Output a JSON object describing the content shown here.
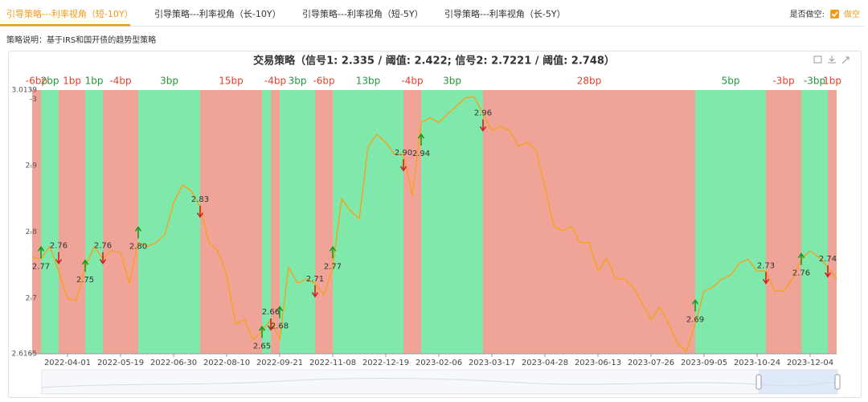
{
  "tabs": [
    "引导策略---利率视角（短-10Y）",
    "引导策略---利率视角（长-10Y）",
    "引导策略---利率视角（短-5Y）",
    "引导策略---利率视角（长-5Y）"
  ],
  "short_toggle": {
    "label": "是否做空:",
    "option": "做空"
  },
  "description": "策略说明：基于IRS和国开债的趋势型策略",
  "chart_data": {
    "type": "line",
    "title": "交易策略（信号1: 2.335 / 阈值: 2.422; 信号2: 2.7221 / 阈值: 2.748）",
    "color": "#f7a21b",
    "categories": [
      null,
      null,
      null,
      null,
      "2022-04-01",
      null,
      null,
      null,
      null,
      null,
      "2022-05-19",
      null,
      null,
      null,
      null,
      null,
      "2022-06-30",
      null,
      null,
      null,
      null,
      null,
      "2022-08-10",
      null,
      null,
      null,
      null,
      null,
      "2022-09-21",
      null,
      null,
      null,
      null,
      null,
      "2022-11-08",
      null,
      null,
      null,
      null,
      null,
      "2022-12-19",
      null,
      null,
      null,
      null,
      null,
      "2023-02-06",
      null,
      null,
      null,
      null,
      null,
      "2023-03-17",
      null,
      null,
      null,
      null,
      null,
      "2023-04-28",
      null,
      null,
      null,
      null,
      null,
      "2023-06-13",
      null,
      null,
      null,
      null,
      null,
      "2023-07-26",
      null,
      null,
      null,
      null,
      null,
      "2023-09-05",
      null,
      null,
      null,
      null,
      null,
      "2023-10-24",
      null,
      null,
      null,
      null,
      null,
      "2023-12-04",
      null,
      null,
      null
    ],
    "values": [
      2.762,
      2.76,
      2.778,
      2.741,
      2.7,
      2.697,
      2.747,
      2.778,
      2.76,
      2.772,
      2.769,
      2.723,
      2.784,
      2.778,
      2.784,
      2.796,
      2.844,
      2.871,
      2.862,
      2.838,
      2.784,
      2.772,
      2.735,
      2.662,
      2.668,
      2.638,
      2.65,
      2.668,
      2.638,
      2.747,
      2.723,
      2.729,
      2.723,
      2.705,
      2.747,
      2.85,
      2.832,
      2.82,
      2.929,
      2.947,
      2.935,
      2.917,
      2.917,
      2.856,
      2.965,
      2.972,
      2.965,
      2.978,
      2.99,
      3.002,
      3.004,
      2.978,
      2.953,
      2.959,
      2.953,
      2.929,
      2.935,
      2.923,
      2.868,
      2.808,
      2.802,
      2.808,
      2.784,
      2.784,
      2.741,
      2.76,
      2.729,
      2.729,
      2.717,
      2.693,
      2.668,
      2.687,
      2.662,
      2.632,
      2.62,
      2.662,
      2.711,
      2.717,
      2.729,
      2.735,
      2.753,
      2.759,
      2.741,
      2.741,
      2.711,
      2.711,
      2.729,
      2.759,
      2.772,
      2.762,
      2.747,
      2.729
    ],
    "ylim": [
      2.6165,
      3.0139
    ],
    "yticks": [
      2.6165,
      2.7,
      2.8,
      2.9,
      3,
      3.0139
    ],
    "regions": [
      {
        "from": 0,
        "to": 1,
        "color": "#f0a498",
        "text_color": "#e5402c",
        "label": "-6bp"
      },
      {
        "from": 1,
        "to": 3,
        "color": "#7fe8aa",
        "text_color": "#1f9a3a",
        "label": "2bp"
      },
      {
        "from": 3,
        "to": 6,
        "color": "#f0a498",
        "text_color": "#e5402c",
        "label": "1bp"
      },
      {
        "from": 6,
        "to": 8,
        "color": "#7fe8aa",
        "text_color": "#1f9a3a",
        "label": "1bp"
      },
      {
        "from": 8,
        "to": 12,
        "color": "#f0a498",
        "text_color": "#e5402c",
        "label": "-4bp"
      },
      {
        "from": 12,
        "to": 19,
        "color": "#7fe8aa",
        "text_color": "#1f9a3a",
        "label": "3bp"
      },
      {
        "from": 19,
        "to": 26,
        "color": "#f0a498",
        "text_color": "#e5402c",
        "label": "15bp"
      },
      {
        "from": 26,
        "to": 27,
        "color": "#7fe8aa",
        "text_color": "#1f9a3a"
      },
      {
        "from": 27,
        "to": 28,
        "color": "#f0a498",
        "text_color": "#e5402c",
        "label": "-4bp"
      },
      {
        "from": 28,
        "to": 32,
        "color": "#7fe8aa",
        "text_color": "#1f9a3a",
        "label": "3bp"
      },
      {
        "from": 32,
        "to": 34,
        "color": "#f0a498",
        "text_color": "#e5402c",
        "label": "-6bp"
      },
      {
        "from": 34,
        "to": 42,
        "color": "#7fe8aa",
        "text_color": "#1f9a3a",
        "label": "13bp"
      },
      {
        "from": 42,
        "to": 44,
        "color": "#f0a498",
        "text_color": "#e5402c",
        "label": "-4bp"
      },
      {
        "from": 44,
        "to": 51,
        "color": "#7fe8aa",
        "text_color": "#1f9a3a",
        "label": "3bp"
      },
      {
        "from": 51,
        "to": 75,
        "color": "#f0a498",
        "text_color": "#e5402c",
        "label": "28bp"
      },
      {
        "from": 75,
        "to": 83,
        "color": "#7fe8aa",
        "text_color": "#1f9a3a",
        "label": "5bp"
      },
      {
        "from": 83,
        "to": 87,
        "color": "#f0a498",
        "text_color": "#e5402c",
        "label": "-3bp"
      },
      {
        "from": 87,
        "to": 90,
        "color": "#7fe8aa",
        "text_color": "#1f9a3a",
        "label": "-3bp"
      },
      {
        "from": 90,
        "to": 91,
        "color": "#f0a498",
        "text_color": "#e5402c",
        "label": "1bp"
      }
    ],
    "signal_colors": {
      "up": "#1a9a1a",
      "down": "#d42020"
    },
    "signals": [
      {
        "at": 1,
        "dir": "up",
        "value": 2.77,
        "label": "2.77"
      },
      {
        "at": 3,
        "dir": "down",
        "value": 2.76,
        "label": "2.76"
      },
      {
        "at": 6,
        "dir": "up",
        "value": 2.75,
        "label": "2.75"
      },
      {
        "at": 8,
        "dir": "down",
        "value": 2.76,
        "label": "2.76"
      },
      {
        "at": 12,
        "dir": "up",
        "value": 2.8,
        "label": "2.80"
      },
      {
        "at": 19,
        "dir": "down",
        "value": 2.83,
        "label": "2.83"
      },
      {
        "at": 26,
        "dir": "up",
        "value": 2.65,
        "label": "2.65"
      },
      {
        "at": 27,
        "dir": "down",
        "value": 2.66,
        "label": "2.66"
      },
      {
        "at": 28,
        "dir": "up",
        "value": 2.68,
        "label": "2.68"
      },
      {
        "at": 32,
        "dir": "down",
        "value": 2.71,
        "label": "2.71"
      },
      {
        "at": 34,
        "dir": "up",
        "value": 2.77,
        "label": "2.77"
      },
      {
        "at": 42,
        "dir": "down",
        "value": 2.9,
        "label": "2.90"
      },
      {
        "at": 44,
        "dir": "up",
        "value": 2.94,
        "label": "2.94"
      },
      {
        "at": 51,
        "dir": "down",
        "value": 2.96,
        "label": "2.96"
      },
      {
        "at": 75,
        "dir": "up",
        "value": 2.69,
        "label": "2.69"
      },
      {
        "at": 83,
        "dir": "down",
        "value": 2.73,
        "label": "2.73"
      },
      {
        "at": 87,
        "dir": "up",
        "value": 2.76,
        "label": "2.76"
      },
      {
        "at": 90,
        "dir": "down",
        "value": 2.74,
        "label": "2.74"
      }
    ]
  }
}
